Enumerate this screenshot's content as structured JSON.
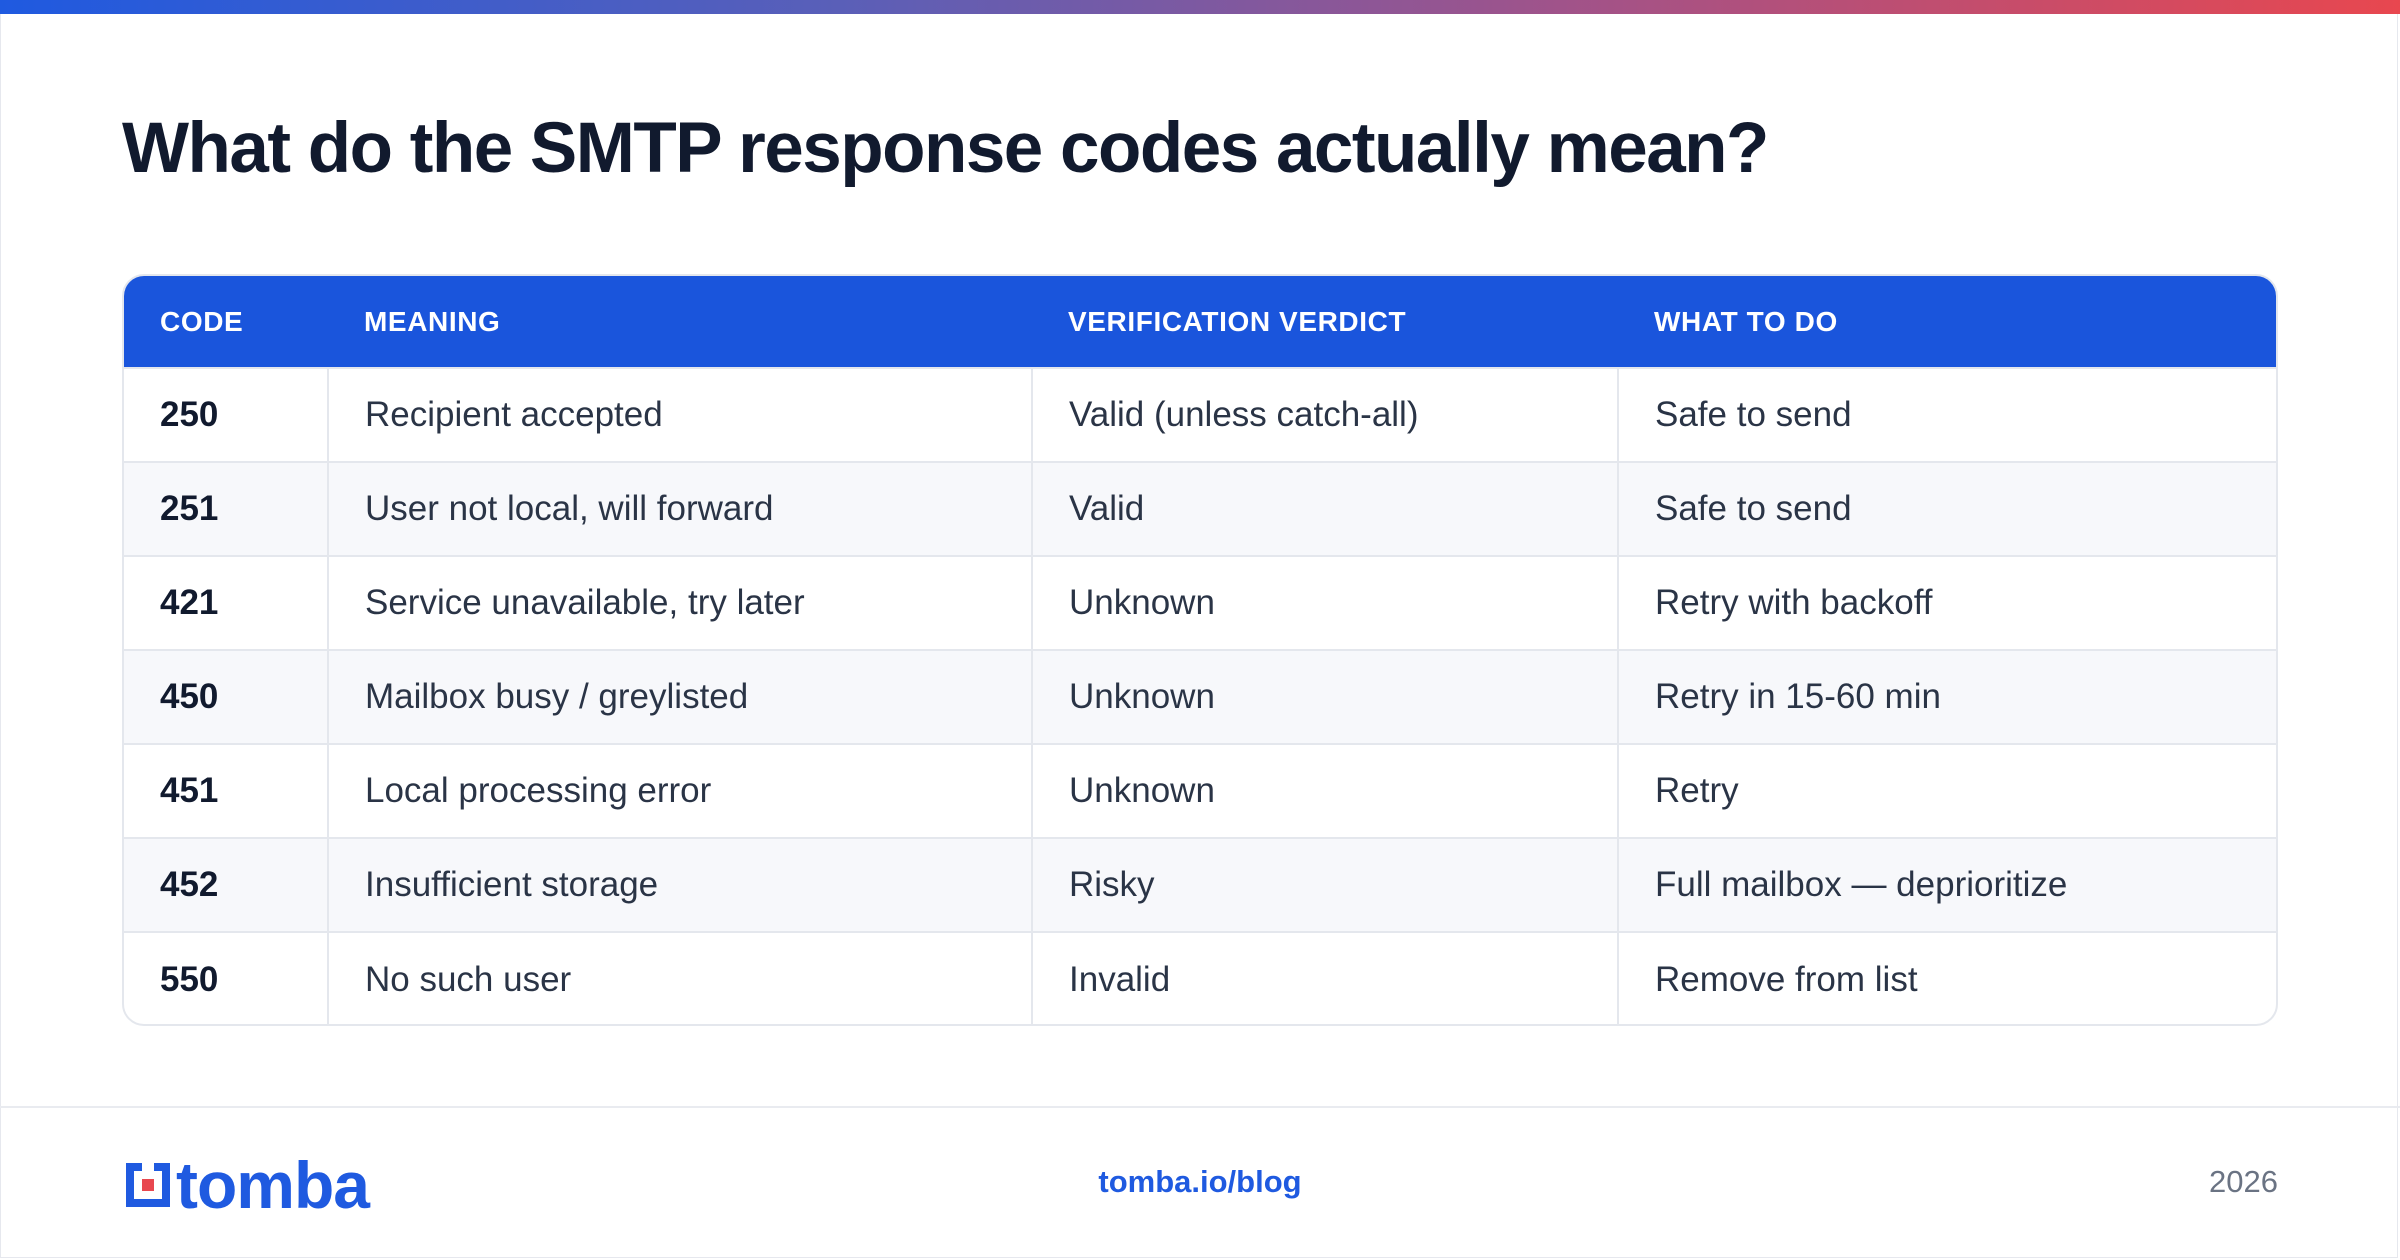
{
  "colors": {
    "brand_blue": "#1a55dc",
    "header_text": "#ffffff",
    "title": "#111a2e",
    "gradient": [
      "#1f5ae0",
      "#e8474f"
    ]
  },
  "title": "What do the SMTP response codes actually mean?",
  "table": {
    "headers": [
      "CODE",
      "MEANING",
      "VERIFICATION VERDICT",
      "WHAT TO DO"
    ],
    "rows": [
      [
        "250",
        "Recipient accepted",
        "Valid (unless catch-all)",
        "Safe to send"
      ],
      [
        "251",
        "User not local, will forward",
        "Valid",
        "Safe to send"
      ],
      [
        "421",
        "Service unavailable, try later",
        "Unknown",
        "Retry with backoff"
      ],
      [
        "450",
        "Mailbox busy / greylisted",
        "Unknown",
        "Retry in 15-60 min"
      ],
      [
        "451",
        "Local processing error",
        "Unknown",
        "Retry"
      ],
      [
        "452",
        "Insufficient storage",
        "Risky",
        "Full mailbox — deprioritize"
      ],
      [
        "550",
        "No such user",
        "Invalid",
        "Remove from list"
      ]
    ]
  },
  "footer": {
    "logo_icon": "tomba-logo-mark",
    "logo_text": "tomba",
    "url": "tomba.io/blog",
    "year": "2026"
  }
}
